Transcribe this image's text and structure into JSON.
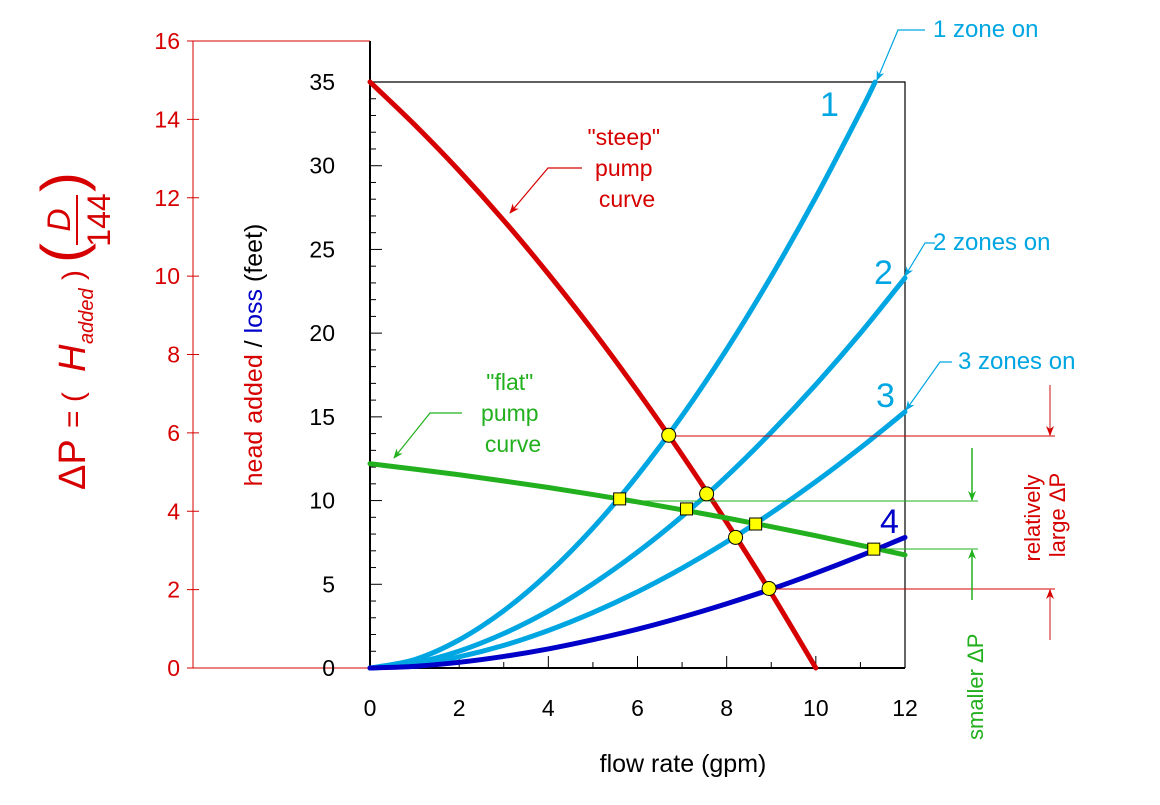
{
  "colors": {
    "red": "#d60000",
    "cyan": "#00a6e2",
    "blue": "#0000c8",
    "green": "#22b01e",
    "black": "#000000"
  },
  "chart_data": {
    "type": "line",
    "xlabel": "flow rate (gpm)",
    "ylabel_parts": [
      "head added",
      " / ",
      "loss",
      " (feet)"
    ],
    "y2label": {
      "lhs": "ΔP",
      "eq": " = ( ",
      "H": "H",
      "sub": "added",
      "close": " )",
      "num": "D",
      "den": "144"
    },
    "xlim": [
      0,
      12
    ],
    "ylim": [
      0,
      35
    ],
    "y2lim": [
      0,
      16
    ],
    "x_ticks": [
      0,
      2,
      4,
      6,
      8,
      10,
      12
    ],
    "y_ticks": [
      0,
      5,
      10,
      15,
      20,
      25,
      30,
      35
    ],
    "y2_ticks": [
      0,
      2,
      4,
      6,
      8,
      10,
      12,
      14,
      16
    ],
    "grid": false,
    "series": [
      {
        "key": "steep",
        "color": "red",
        "points": [
          [
            0,
            35
          ],
          [
            1,
            32.45
          ],
          [
            2,
            29.7
          ],
          [
            3,
            26.73
          ],
          [
            4,
            23.54
          ],
          [
            5,
            20.15
          ],
          [
            6,
            16.54
          ],
          [
            7,
            12.73
          ],
          [
            8,
            8.7
          ],
          [
            9,
            4.47
          ],
          [
            10,
            0
          ]
        ]
      },
      {
        "key": "flat",
        "color": "green",
        "points": [
          [
            0,
            12.2
          ],
          [
            1,
            11.88
          ],
          [
            2,
            11.54
          ],
          [
            3,
            11.17
          ],
          [
            4,
            10.78
          ],
          [
            5,
            10.36
          ],
          [
            6,
            9.92
          ],
          [
            7,
            9.45
          ],
          [
            8,
            8.96
          ],
          [
            9,
            8.44
          ],
          [
            10,
            7.9
          ],
          [
            11,
            7.33
          ],
          [
            12,
            6.75
          ]
        ]
      },
      {
        "key": "system-1",
        "color": "cyan",
        "points": [
          [
            0,
            0
          ],
          [
            1,
            0.5
          ],
          [
            2,
            1.68
          ],
          [
            3,
            3.42
          ],
          [
            4,
            5.66
          ],
          [
            5,
            8.36
          ],
          [
            6,
            11.5
          ],
          [
            7,
            15.06
          ],
          [
            8,
            19.03
          ],
          [
            9,
            23.39
          ],
          [
            10,
            28.12
          ],
          [
            11,
            33.22
          ],
          [
            11.33,
            35
          ]
        ]
      },
      {
        "key": "system-2",
        "color": "cyan",
        "points": [
          [
            0,
            0
          ],
          [
            1,
            0.3
          ],
          [
            2,
            1.01
          ],
          [
            3,
            2.06
          ],
          [
            4,
            3.4
          ],
          [
            5,
            5.03
          ],
          [
            6,
            6.92
          ],
          [
            7,
            9.06
          ],
          [
            8,
            11.45
          ],
          [
            9,
            14.08
          ],
          [
            10,
            16.93
          ],
          [
            11,
            20.0
          ],
          [
            12,
            23.3
          ]
        ]
      },
      {
        "key": "system-3",
        "color": "cyan",
        "points": [
          [
            0,
            0
          ],
          [
            1,
            0.2
          ],
          [
            2,
            0.67
          ],
          [
            3,
            1.35
          ],
          [
            4,
            2.24
          ],
          [
            5,
            3.31
          ],
          [
            6,
            4.55
          ],
          [
            7,
            5.96
          ],
          [
            8,
            7.53
          ],
          [
            9,
            9.26
          ],
          [
            10,
            11.13
          ],
          [
            11,
            13.15
          ],
          [
            12,
            15.3
          ]
        ]
      },
      {
        "key": "system-4",
        "color": "blue",
        "points": [
          [
            0,
            0
          ],
          [
            1,
            0.1
          ],
          [
            2,
            0.34
          ],
          [
            3,
            0.69
          ],
          [
            4,
            1.14
          ],
          [
            5,
            1.69
          ],
          [
            6,
            2.32
          ],
          [
            7,
            3.04
          ],
          [
            8,
            3.84
          ],
          [
            9,
            4.71
          ],
          [
            10,
            5.67
          ],
          [
            11,
            6.7
          ],
          [
            12,
            7.8
          ]
        ]
      }
    ],
    "operating_points_steep": [
      [
        6.7,
        13.9
      ],
      [
        7.55,
        10.4
      ],
      [
        8.2,
        7.8
      ],
      [
        8.95,
        4.75
      ]
    ],
    "operating_points_flat": [
      [
        5.6,
        10.1
      ],
      [
        7.1,
        9.5
      ],
      [
        8.65,
        8.6
      ],
      [
        11.3,
        7.1
      ]
    ],
    "annotations": {
      "steep": [
        "\"steep\"",
        "pump",
        "curve"
      ],
      "flat": [
        "\"flat\"",
        "pump",
        "curve"
      ],
      "zone1": "1 zone on",
      "zone2": "2 zones on",
      "zone3": "3 zones on",
      "num1": "1",
      "num2": "2",
      "num3": "3",
      "num4": "4",
      "large_dp": [
        "relatively",
        "large ΔP"
      ],
      "small_dp": "smaller ΔP"
    }
  }
}
